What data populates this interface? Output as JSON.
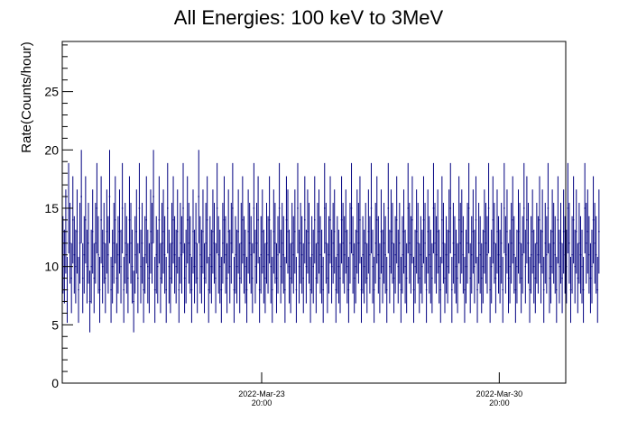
{
  "chart_data": {
    "type": "scatter",
    "title": "All Energies:  100 keV to 3MeV",
    "xlabel": "",
    "ylabel": "Rate(Counts/hour)",
    "ylim": [
      0,
      29.3
    ],
    "ytick_labels": [
      "0",
      "5",
      "10",
      "15",
      "20",
      "25"
    ],
    "xlim": [
      "2022-Mar-17 23:00",
      "2022-Apr-01 19:00"
    ],
    "xtick_labels": [
      {
        "date": "2022-Mar-23",
        "time": "20:00"
      },
      {
        "date": "2022-Mar-30",
        "time": "20:00"
      }
    ],
    "grid": false,
    "series_color": "#000080",
    "series": [
      {
        "x_start": "2022-Mar-17 23:30",
        "x_step_hours": 1,
        "error_bars": "poisson (sqrt of counts per hour)",
        "values": [
          11,
          10,
          13,
          8,
          15,
          12,
          9,
          14,
          11,
          10,
          13,
          8,
          12,
          16,
          9,
          11,
          14,
          10,
          12,
          7,
          10,
          13,
          9,
          12,
          15,
          11,
          8,
          14,
          10,
          12,
          9,
          13,
          11,
          16,
          8,
          10,
          12,
          14,
          9,
          11,
          13,
          10,
          15,
          8,
          12,
          11,
          9,
          14,
          12,
          10,
          7,
          11,
          13,
          9,
          15,
          10,
          12,
          8,
          11,
          14,
          10,
          9,
          13,
          12,
          16,
          8,
          11,
          10,
          14,
          9,
          12,
          13,
          11,
          8,
          15,
          10,
          9,
          12,
          14,
          11,
          10,
          13,
          8,
          12,
          11,
          15,
          9,
          10,
          14,
          12,
          11,
          8,
          13,
          10,
          12,
          9,
          16,
          11,
          10,
          13,
          9,
          12,
          14,
          8,
          11,
          10,
          13,
          12,
          9,
          15,
          11,
          10,
          8,
          12,
          14,
          11,
          9,
          13,
          10,
          12,
          15,
          8,
          11,
          10,
          13,
          9,
          12,
          14,
          11,
          10,
          8,
          13,
          12,
          11,
          9,
          15,
          10,
          12,
          14,
          8,
          11,
          13,
          10,
          9,
          12,
          11,
          14,
          10,
          8,
          13,
          12,
          9,
          11,
          15,
          10,
          12,
          11,
          8,
          14,
          13,
          10,
          9,
          12,
          11,
          13,
          8,
          15,
          10,
          12,
          11,
          9,
          14,
          10,
          13,
          12,
          8,
          11,
          10,
          14,
          9,
          12,
          13,
          11,
          10,
          8,
          15,
          12,
          9,
          11,
          14,
          10,
          12,
          13,
          8,
          11,
          10,
          9,
          14,
          12,
          11,
          13,
          10,
          8,
          12,
          15,
          11,
          9,
          10,
          13,
          12,
          14,
          8,
          11,
          10,
          12,
          9,
          13,
          11,
          15,
          10,
          8,
          12,
          14,
          11,
          9,
          13,
          10,
          12,
          11,
          8,
          15,
          10,
          13,
          12,
          9,
          11,
          14,
          10,
          12,
          8,
          11,
          13,
          10,
          9,
          15,
          12,
          11,
          14,
          8,
          10,
          13,
          12,
          9,
          11,
          10,
          14,
          12,
          8,
          13,
          11,
          10,
          9,
          15,
          12,
          11,
          13,
          10,
          8,
          14,
          12,
          9,
          11,
          10,
          13,
          15,
          8,
          12,
          11,
          10,
          9,
          14,
          12,
          13,
          11,
          8,
          10,
          12,
          15,
          9,
          11,
          13,
          10,
          14,
          8,
          12,
          11,
          9,
          10,
          13,
          12,
          11,
          15,
          8,
          10,
          14,
          12,
          9,
          13,
          11,
          10,
          12,
          8,
          15,
          11,
          13,
          9,
          10,
          12,
          14,
          11,
          8,
          10,
          13,
          12,
          9,
          11,
          15,
          10,
          14,
          12,
          8,
          11,
          13,
          10,
          9,
          12,
          11,
          14,
          10,
          13,
          8,
          12,
          11,
          15,
          9,
          10,
          13,
          12,
          11,
          8,
          14,
          10,
          12,
          9,
          13,
          11,
          10,
          15,
          12,
          8,
          11,
          14,
          10,
          13,
          9,
          12,
          11,
          10,
          8,
          15,
          12,
          13,
          11,
          9,
          10,
          14,
          12,
          11,
          8,
          13
        ]
      }
    ]
  }
}
